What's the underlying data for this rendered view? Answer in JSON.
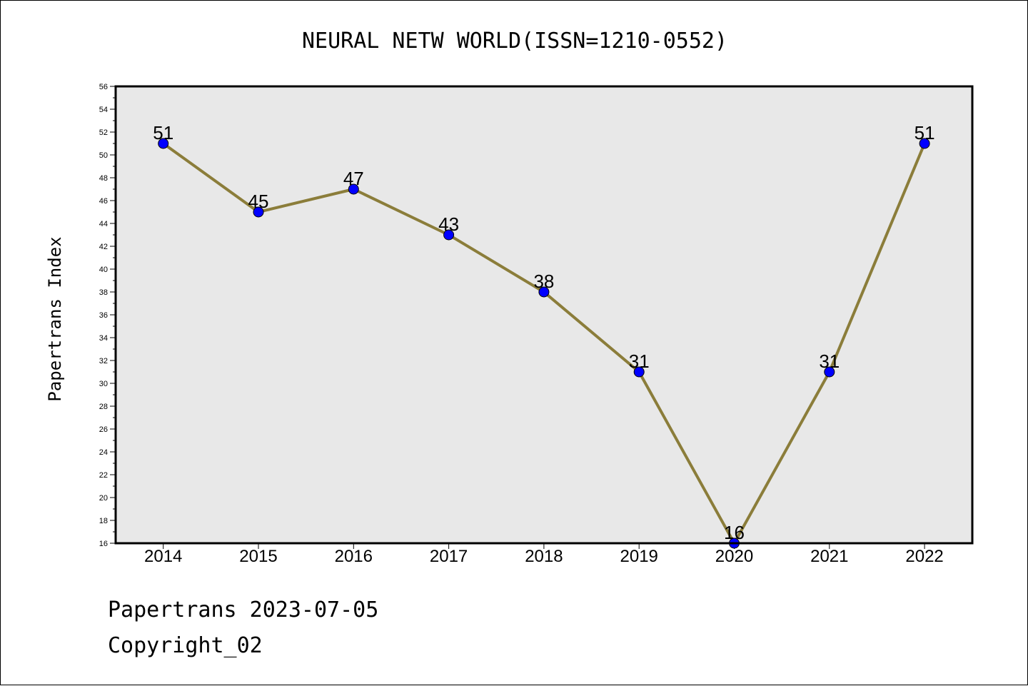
{
  "chart_data": {
    "type": "line",
    "title": "NEURAL NETW WORLD(ISSN=1210-0552)",
    "xlabel": "",
    "ylabel": "Papertrans Index",
    "categories": [
      "2014",
      "2015",
      "2016",
      "2017",
      "2018",
      "2019",
      "2020",
      "2021",
      "2022"
    ],
    "series": [
      {
        "values": [
          51,
          45,
          47,
          43,
          38,
          31,
          16,
          31,
          51
        ]
      }
    ],
    "data_labels": [
      "51",
      "45",
      "47",
      "43",
      "38",
      "31",
      "16",
      "31",
      "51"
    ],
    "ylim": [
      16,
      56
    ],
    "y_major_step": 2,
    "y_minor_step": 1,
    "grid": false,
    "legend": "none",
    "colors": {
      "line": "#8B7D3A",
      "marker": "#0000FF",
      "plot_background": "#E8E8E8"
    }
  },
  "footer": {
    "line1": "Papertrans 2023-07-05",
    "line2": "Copyright_02"
  }
}
